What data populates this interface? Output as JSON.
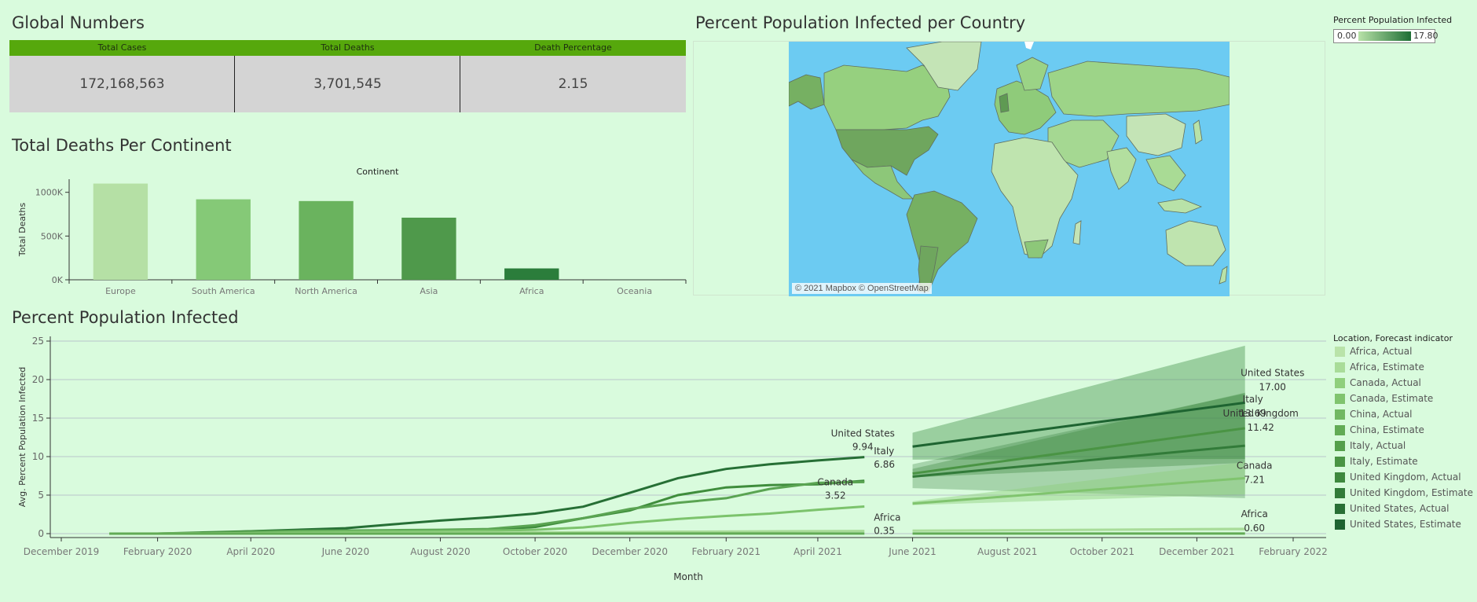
{
  "global": {
    "title": "Global Numbers",
    "columns": [
      {
        "header": "Total Cases",
        "value": "172,168,563"
      },
      {
        "header": "Total Deaths",
        "value": "3,701,545"
      },
      {
        "header": "Death Percentage",
        "value": "2.15"
      }
    ]
  },
  "bar_section": {
    "title": "Total Deaths Per Continent"
  },
  "map_section": {
    "title": "Percent Population Infected per Country",
    "attribution": "© 2021 Mapbox © OpenStreetMap",
    "legend_title": "Percent Population Infected",
    "legend_min": "0.00",
    "legend_max": "17.80",
    "legend_colors": [
      "#b8e2a8",
      "#1e6e35"
    ],
    "ocean_color": "#6ccbf2"
  },
  "line_section": {
    "title": "Percent Population Infected",
    "legend_title": "Location, Forecast indicator",
    "legend_items": [
      {
        "label": "Africa, Actual",
        "color": "#b9e3a9"
      },
      {
        "label": "Africa, Estimate",
        "color": "#a9dc99"
      },
      {
        "label": "Canada, Actual",
        "color": "#8fcf7c"
      },
      {
        "label": "Canada, Estimate",
        "color": "#80c46e"
      },
      {
        "label": "China, Actual",
        "color": "#71b862"
      },
      {
        "label": "China, Estimate",
        "color": "#62ab55"
      },
      {
        "label": "Italy, Actual",
        "color": "#559f4b"
      },
      {
        "label": "Italy, Estimate",
        "color": "#4a9444"
      },
      {
        "label": "United Kingdom, Actual",
        "color": "#3e883e"
      },
      {
        "label": "United Kingdom, Estimate",
        "color": "#327b39"
      },
      {
        "label": "United States, Actual",
        "color": "#286f35"
      },
      {
        "label": "United States, Estimate",
        "color": "#1e6431"
      }
    ]
  },
  "chart_data": [
    {
      "type": "bar",
      "title": "",
      "top_label": "Continent",
      "ylabel": "Total Deaths",
      "categories": [
        "Europe",
        "South America",
        "North America",
        "Asia",
        "Africa",
        "Oceania"
      ],
      "values": [
        1100000,
        920000,
        900000,
        710000,
        130000,
        1000
      ],
      "colors": [
        "#b5e0a5",
        "#85c977",
        "#6ab35e",
        "#4f994b",
        "#2b7d3b",
        "#2b7d3b"
      ],
      "ylim": [
        0,
        1150000
      ],
      "ticks": [
        {
          "v": 0,
          "label": "0K"
        },
        {
          "v": 500000,
          "label": "500K"
        },
        {
          "v": 1000000,
          "label": "1000K"
        }
      ]
    },
    {
      "type": "line",
      "xlabel": "Month",
      "ylabel": "Avg. Percent Population Infected",
      "ylim": [
        0,
        25
      ],
      "yticks": [
        0,
        5,
        10,
        15,
        20,
        25
      ],
      "xlim": [
        "2019-12-01",
        "2022-02-01"
      ],
      "xticks": [
        {
          "date": "2019-12-01",
          "label": "December 2019"
        },
        {
          "date": "2020-02-01",
          "label": "February 2020"
        },
        {
          "date": "2020-04-01",
          "label": "April 2020"
        },
        {
          "date": "2020-06-01",
          "label": "June 2020"
        },
        {
          "date": "2020-08-01",
          "label": "August 2020"
        },
        {
          "date": "2020-10-01",
          "label": "October 2020"
        },
        {
          "date": "2020-12-01",
          "label": "December 2020"
        },
        {
          "date": "2021-02-01",
          "label": "February 2021"
        },
        {
          "date": "2021-04-01",
          "label": "April 2021"
        },
        {
          "date": "2021-06-01",
          "label": "June 2021"
        },
        {
          "date": "2021-08-01",
          "label": "August 2021"
        },
        {
          "date": "2021-10-01",
          "label": "October 2021"
        },
        {
          "date": "2021-12-01",
          "label": "December 2021"
        },
        {
          "date": "2022-02-01",
          "label": "February 2022"
        }
      ],
      "actual": [
        {
          "name": "United States",
          "color": "#266f35",
          "x": [
            "2020-01-01",
            "2020-02-01",
            "2020-03-01",
            "2020-04-01",
            "2020-05-01",
            "2020-06-01",
            "2020-07-01",
            "2020-08-01",
            "2020-09-01",
            "2020-10-01",
            "2020-11-01",
            "2020-12-01",
            "2021-01-01",
            "2021-02-01",
            "2021-03-01",
            "2021-04-01",
            "2021-05-01"
          ],
          "y": [
            0,
            0,
            0.05,
            0.3,
            0.5,
            0.7,
            1.2,
            1.7,
            2.1,
            2.6,
            3.5,
            5.3,
            7.2,
            8.4,
            9.0,
            9.5,
            9.94
          ],
          "end_label": "United States",
          "end_value": "9.94"
        },
        {
          "name": "Italy",
          "color": "#3f8d3c",
          "x": [
            "2020-01-01",
            "2020-02-01",
            "2020-03-01",
            "2020-04-01",
            "2020-05-01",
            "2020-06-01",
            "2020-07-01",
            "2020-08-01",
            "2020-09-01",
            "2020-10-01",
            "2020-11-01",
            "2020-12-01",
            "2021-01-01",
            "2021-02-01",
            "2021-03-01",
            "2021-04-01",
            "2021-05-01"
          ],
          "y": [
            0,
            0,
            0.15,
            0.3,
            0.37,
            0.39,
            0.41,
            0.43,
            0.5,
            0.85,
            2.0,
            3.0,
            5.0,
            6.0,
            6.3,
            6.4,
            6.86
          ],
          "end_label": "Italy",
          "end_value": "6.86"
        },
        {
          "name": "United Kingdom",
          "color": "#5aa452",
          "x": [
            "2020-01-01",
            "2020-02-01",
            "2020-03-01",
            "2020-04-01",
            "2020-05-01",
            "2020-06-01",
            "2020-07-01",
            "2020-08-01",
            "2020-09-01",
            "2020-10-01",
            "2020-11-01",
            "2020-12-01",
            "2021-01-01",
            "2021-02-01",
            "2021-03-01",
            "2021-04-01",
            "2021-05-01"
          ],
          "y": [
            0,
            0,
            0.05,
            0.2,
            0.35,
            0.4,
            0.45,
            0.5,
            0.6,
            1.1,
            2.0,
            3.2,
            4.0,
            4.6,
            5.8,
            6.6,
            6.7
          ],
          "end_label": "",
          "end_value": ""
        },
        {
          "name": "Canada",
          "color": "#7cc36c",
          "x": [
            "2020-01-01",
            "2020-02-01",
            "2020-03-01",
            "2020-04-01",
            "2020-05-01",
            "2020-06-01",
            "2020-07-01",
            "2020-08-01",
            "2020-09-01",
            "2020-10-01",
            "2020-11-01",
            "2020-12-01",
            "2021-01-01",
            "2021-02-01",
            "2021-03-01",
            "2021-04-01",
            "2021-05-01"
          ],
          "y": [
            0,
            0,
            0.01,
            0.08,
            0.18,
            0.25,
            0.28,
            0.32,
            0.38,
            0.5,
            0.8,
            1.4,
            1.9,
            2.3,
            2.6,
            3.1,
            3.52
          ],
          "end_label": "Canada",
          "end_value": "3.52"
        },
        {
          "name": "Africa",
          "color": "#a8db98",
          "x": [
            "2020-01-01",
            "2020-06-01",
            "2020-10-01",
            "2021-01-01",
            "2021-05-01"
          ],
          "y": [
            0,
            0.05,
            0.15,
            0.25,
            0.35
          ],
          "end_label": "Africa",
          "end_value": "0.35"
        },
        {
          "name": "China",
          "color": "#62ab55",
          "x": [
            "2020-01-01",
            "2021-05-01"
          ],
          "y": [
            0,
            0.01
          ],
          "end_label": "",
          "end_value": ""
        }
      ],
      "forecast": [
        {
          "name": "United States",
          "color": "#1e6431",
          "band_color": "#4e9855",
          "band_opacity": 0.45,
          "x": [
            "2021-06-01",
            "2022-01-01"
          ],
          "y": [
            11.3,
            17.0
          ],
          "lower": [
            9.6,
            9.7
          ],
          "upper": [
            13.1,
            24.4
          ],
          "end_label": "United States",
          "end_value": "17.00"
        },
        {
          "name": "Italy",
          "color": "#4a9444",
          "band_color": "#3d8a3c",
          "band_opacity": 0.35,
          "x": [
            "2021-06-01",
            "2022-01-01"
          ],
          "y": [
            7.8,
            13.69
          ],
          "lower": [
            7.3,
            9.2
          ],
          "upper": [
            8.4,
            18.3
          ],
          "end_label": "Italy",
          "end_value": "13.69"
        },
        {
          "name": "United Kingdom",
          "color": "#327b39",
          "band_color": "#327b39",
          "band_opacity": 0.3,
          "x": [
            "2021-06-01",
            "2022-01-01"
          ],
          "y": [
            7.4,
            11.42
          ],
          "lower": [
            5.9,
            4.6
          ],
          "upper": [
            9.0,
            18.2
          ],
          "end_label": "United Kingdom",
          "end_value": "11.42"
        },
        {
          "name": "Canada",
          "color": "#80c46e",
          "band_color": "#8fcf7c",
          "band_opacity": 0.45,
          "x": [
            "2021-06-01",
            "2022-01-01"
          ],
          "y": [
            3.9,
            7.21
          ],
          "lower": [
            3.7,
            5.1
          ],
          "upper": [
            4.2,
            9.3
          ],
          "end_label": "Canada",
          "end_value": "7.21"
        },
        {
          "name": "Africa",
          "color": "#a9dc99",
          "band_color": "#a9dc99",
          "band_opacity": 0.4,
          "x": [
            "2021-06-01",
            "2022-01-01"
          ],
          "y": [
            0.38,
            0.6
          ],
          "lower": [
            0.3,
            0.4
          ],
          "upper": [
            0.46,
            0.8
          ],
          "end_label": "Africa",
          "end_value": "0.60"
        },
        {
          "name": "China",
          "color": "#62ab55",
          "band_color": "#62ab55",
          "band_opacity": 0.3,
          "x": [
            "2021-06-01",
            "2022-01-01"
          ],
          "y": [
            0.01,
            0.01
          ],
          "lower": [
            0,
            0
          ],
          "upper": [
            0.05,
            0.05
          ],
          "end_label": "",
          "end_value": ""
        }
      ]
    }
  ]
}
